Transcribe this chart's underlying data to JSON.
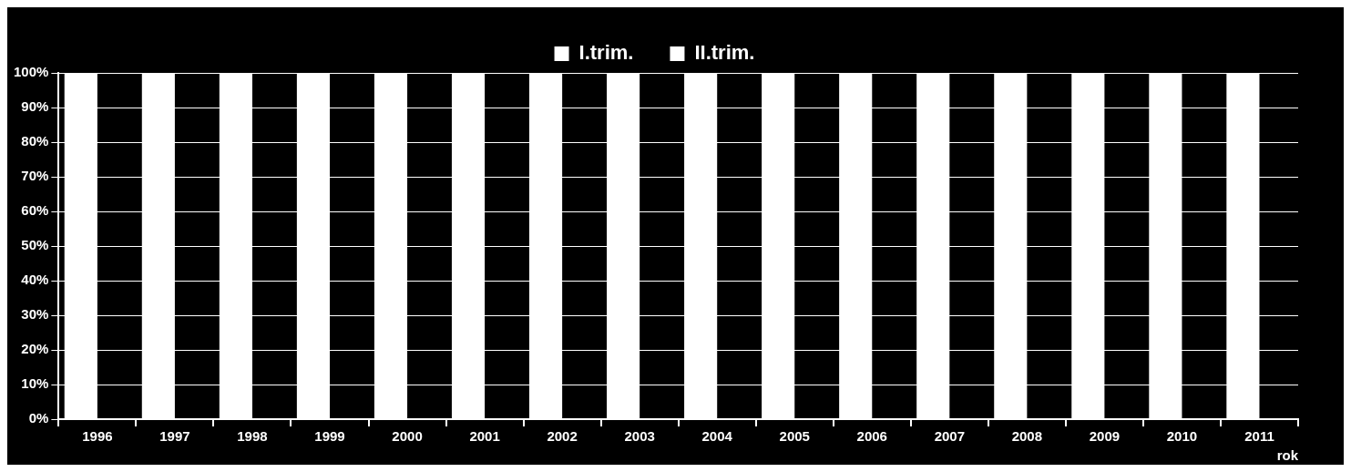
{
  "chart_data": {
    "type": "bar",
    "xlabel": "rok",
    "categories": [
      "1996",
      "1997",
      "1998",
      "1999",
      "2000",
      "2001",
      "2002",
      "2003",
      "2004",
      "2005",
      "2006",
      "2007",
      "2008",
      "2009",
      "2010",
      "2011"
    ],
    "series": [
      {
        "name": "I.trim.",
        "color": "#ffffff",
        "values": [
          100,
          100,
          100,
          100,
          100,
          100,
          100,
          100,
          100,
          100,
          100,
          100,
          100,
          100,
          100,
          100
        ]
      },
      {
        "name": "II.trim.",
        "color": "#ffffff",
        "values": [
          0,
          0,
          0,
          0,
          0,
          0,
          0,
          0,
          0,
          0,
          0,
          0,
          0,
          0,
          0,
          0
        ]
      }
    ],
    "ylim": [
      0,
      100
    ],
    "yticks": [
      {
        "value": 0,
        "label": "0%"
      },
      {
        "value": 10,
        "label": "10%"
      },
      {
        "value": 20,
        "label": "20%"
      },
      {
        "value": 30,
        "label": "30%"
      },
      {
        "value": 40,
        "label": "40%"
      },
      {
        "value": 50,
        "label": "50%"
      },
      {
        "value": 60,
        "label": "60%"
      },
      {
        "value": 70,
        "label": "70%"
      },
      {
        "value": 80,
        "label": "80%"
      },
      {
        "value": 90,
        "label": "90%"
      },
      {
        "value": 100,
        "label": "100%"
      }
    ],
    "grid": "y",
    "legend": "top"
  }
}
